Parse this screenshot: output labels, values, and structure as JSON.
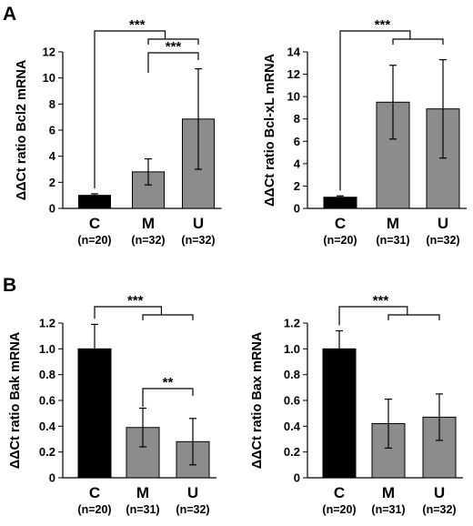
{
  "panel_letters": [
    "A",
    "B"
  ],
  "chart_data": [
    {
      "type": "bar",
      "panel": "A",
      "ylabel": "ΔΔCt ratio Bcl2 mRNA",
      "categories": [
        "C",
        "M",
        "U"
      ],
      "counts": [
        "(n=20)",
        "(n=32)",
        "(n=32)"
      ],
      "values": [
        1.0,
        2.8,
        6.85
      ],
      "errors": [
        0.12,
        1.0,
        3.85
      ],
      "ylim": [
        0,
        12
      ],
      "yticks": [
        0,
        2,
        4,
        6,
        8,
        10,
        12
      ],
      "colors": [
        "#000000",
        "#8c8c8c",
        "#8c8c8c"
      ],
      "significance": [
        {
          "label": "***",
          "from": "C",
          "to": "M,U"
        },
        {
          "label": "***",
          "from": "M",
          "to": "U"
        }
      ]
    },
    {
      "type": "bar",
      "panel": "A",
      "ylabel": "ΔΔCt ratio Bcl-xL mRNA",
      "categories": [
        "C",
        "M",
        "U"
      ],
      "counts": [
        "(n=20)",
        "(n=31)",
        "(n=32)"
      ],
      "values": [
        1.0,
        9.5,
        8.9
      ],
      "errors": [
        0.12,
        3.3,
        4.4
      ],
      "ylim": [
        0,
        14
      ],
      "yticks": [
        0,
        2,
        4,
        6,
        8,
        10,
        12,
        14
      ],
      "colors": [
        "#000000",
        "#8c8c8c",
        "#8c8c8c"
      ],
      "significance": [
        {
          "label": "***",
          "from": "C",
          "to": "M,U"
        }
      ]
    },
    {
      "type": "bar",
      "panel": "B",
      "ylabel": "ΔΔCt ratio Bak mRNA",
      "categories": [
        "C",
        "M",
        "U"
      ],
      "counts": [
        "(n=20)",
        "(n=31)",
        "(n=32)"
      ],
      "values": [
        1.0,
        0.39,
        0.28
      ],
      "errors": [
        0.19,
        0.15,
        0.18
      ],
      "ylim": [
        0,
        1.2
      ],
      "yticks": [
        "0",
        "0.2",
        "0.4",
        "0.6",
        "0.8",
        "1.0",
        "1.2"
      ],
      "colors": [
        "#000000",
        "#8c8c8c",
        "#8c8c8c"
      ],
      "significance": [
        {
          "label": "***",
          "from": "C",
          "to": "M,U"
        },
        {
          "label": "**",
          "from": "M",
          "to": "U"
        }
      ]
    },
    {
      "type": "bar",
      "panel": "B",
      "ylabel": "ΔΔCt ratio Bax mRNA",
      "categories": [
        "C",
        "M",
        "U"
      ],
      "counts": [
        "(n=20)",
        "(n=31)",
        "(n=32)"
      ],
      "values": [
        1.0,
        0.42,
        0.47
      ],
      "errors": [
        0.14,
        0.19,
        0.18
      ],
      "ylim": [
        0,
        1.2
      ],
      "yticks": [
        "0",
        "0.2",
        "0.4",
        "0.6",
        "0.8",
        "1.0",
        "1.2"
      ],
      "colors": [
        "#000000",
        "#8c8c8c",
        "#8c8c8c"
      ],
      "significance": [
        {
          "label": "***",
          "from": "C",
          "to": "M,U"
        }
      ]
    }
  ]
}
